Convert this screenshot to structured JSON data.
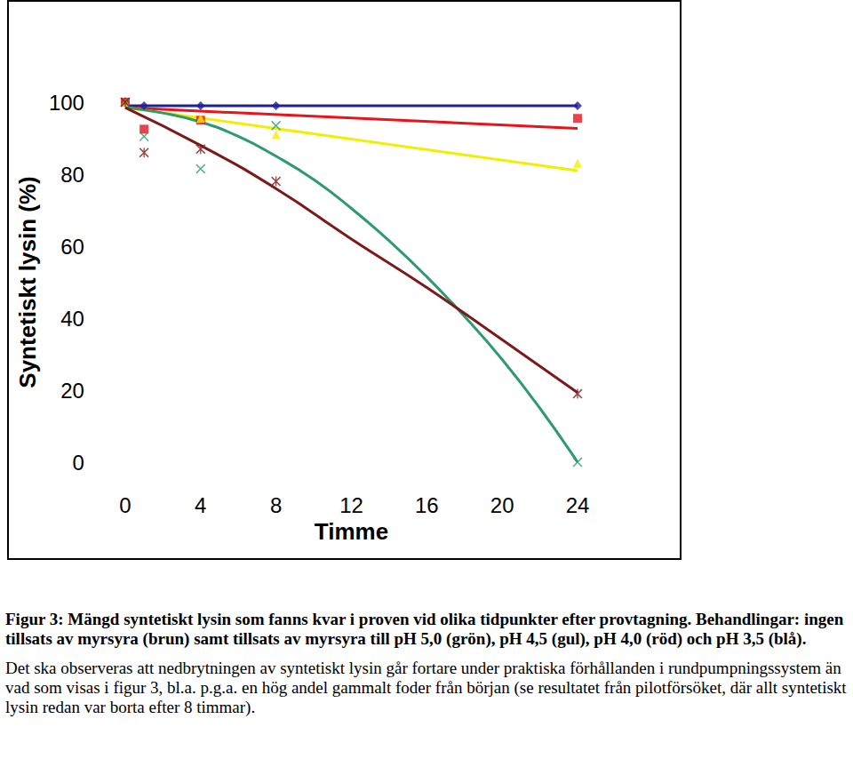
{
  "chart_data": {
    "type": "scatter",
    "xlabel": "Timme",
    "ylabel": "Syntetiskt lysin (%)",
    "xlim": [
      0,
      24
    ],
    "xticks": [
      0,
      4,
      8,
      12,
      16,
      20,
      24
    ],
    "ylim": [
      0,
      100
    ],
    "yticks": [
      0,
      20,
      40,
      60,
      80,
      100
    ],
    "grid": false,
    "series": [
      {
        "color": "#1f1f9c",
        "marker": "diamond",
        "line_style": "solid",
        "x": [
          0,
          1,
          4,
          8,
          24
        ],
        "values": [
          100,
          99,
          99,
          99,
          99
        ],
        "trend": {
          "x": [
            0,
            24
          ],
          "values": [
            99,
            99
          ]
        }
      },
      {
        "color": "#e8141a",
        "marker": "square",
        "line_style": "solid",
        "x": [
          0,
          1,
          4,
          24
        ],
        "values": [
          100,
          92.5,
          95,
          95.5
        ],
        "trend": {
          "x": [
            0,
            24
          ],
          "values": [
            98.5,
            92.7
          ]
        }
      },
      {
        "color": "#f2ee00",
        "marker": "triangle",
        "line_style": "solid",
        "x": [
          0,
          4,
          8,
          24
        ],
        "values": [
          100,
          95.5,
          91,
          83
        ],
        "trend": {
          "x": [
            0,
            24
          ],
          "values": [
            98.5,
            81
          ]
        }
      },
      {
        "color": "#2e9a70",
        "marker": "x",
        "line_style": "solid",
        "x": [
          0,
          1,
          4,
          8,
          24
        ],
        "values": [
          100,
          90.5,
          81.5,
          93.5,
          0
        ],
        "trend": {
          "x": [
            0,
            2,
            4,
            6,
            8,
            10,
            12,
            14,
            16,
            18,
            20,
            22,
            24
          ],
          "values": [
            98.5,
            97,
            94.5,
            90.5,
            85,
            78.5,
            70.5,
            61.5,
            51.5,
            40.5,
            28.5,
            15,
            0
          ]
        }
      },
      {
        "color": "#7b1a1a",
        "marker": "asterisk",
        "line_style": "solid",
        "x": [
          0,
          1,
          4,
          8,
          24
        ],
        "values": [
          100,
          86,
          87,
          78,
          19
        ],
        "trend": {
          "x": [
            0,
            4,
            8,
            12,
            16,
            20,
            24
          ],
          "values": [
            98.5,
            88,
            76,
            62,
            48.5,
            34,
            19.3
          ]
        }
      }
    ]
  },
  "caption": {
    "figure": "Figur 3: Mängd syntetiskt lysin som fanns kvar i proven vid olika tidpunkter efter provtagning. Behandlingar: ingen tillsats av myrsyra (brun) samt tillsats av myrsyra till pH 5,0 (grön), pH 4,5 (gul), pH 4,0 (röd) och pH 3,5 (blå).",
    "note": "Det ska observeras att nedbrytningen av syntetiskt lysin går fortare under praktiska förhållanden i rundpumpningssystem än vad som visas i figur 3, bl.a. p.g.a. en hög andel gammalt foder från början (se resultatet från pilotförsöket, där allt syntetiskt lysin redan var borta efter 8 timmar)."
  }
}
